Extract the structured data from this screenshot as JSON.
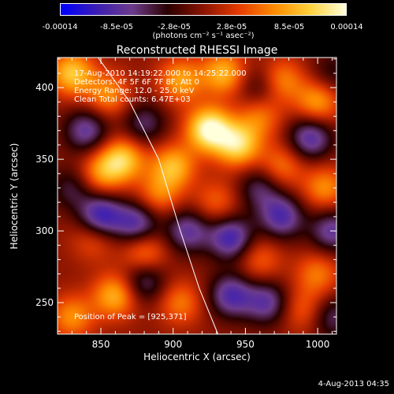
{
  "colorbar": {
    "ticks": [
      "-0.00014",
      "-8.5e-05",
      "-2.8e-05",
      "2.8e-05",
      "8.5e-05",
      "0.00014"
    ],
    "unit": "(photons cm⁻² s⁻¹ asec⁻²)",
    "colors": [
      "#0000ff",
      "#3c1eb4",
      "#6e3c8c",
      "#2a0000",
      "#8c1400",
      "#e63c00",
      "#ff8c00",
      "#ffd23c",
      "#ffffdc"
    ]
  },
  "chart_data": {
    "type": "heatmap",
    "title": "Reconstructed RHESSI Image",
    "xlabel": "Heliocentric X (arcsec)",
    "ylabel": "Heliocentric Y (arcsec)",
    "xlim": [
      820,
      1013
    ],
    "ylim": [
      228,
      421
    ],
    "xticks": [
      850,
      900,
      950,
      1000
    ],
    "yticks": [
      250,
      300,
      350,
      400
    ],
    "value_range": [
      -0.00014,
      0.00014
    ],
    "annotations": [
      "17-Aug-2010 14:19:22.000 to 14:25:22.000",
      "Detectors: 4F 5F 6F 7F 8F, Att 0",
      "Energy Range: 12.0 - 25.0 keV",
      "Clean     Total counts: 6.47E+03"
    ],
    "peak_label": "Position of Peak = [925,371]",
    "peak": [
      925,
      371
    ],
    "limb": [
      [
        848,
        421
      ],
      [
        870,
        390
      ],
      [
        890,
        350
      ],
      [
        905,
        300
      ],
      [
        918,
        260
      ],
      [
        931,
        228
      ]
    ],
    "blobs": [
      {
        "x": 830,
        "y": 410,
        "v": 0.0001
      },
      {
        "x": 855,
        "y": 395,
        "v": 7e-05
      },
      {
        "x": 905,
        "y": 405,
        "v": 8e-05
      },
      {
        "x": 935,
        "y": 410,
        "v": 9e-05
      },
      {
        "x": 960,
        "y": 380,
        "v": 6e-05
      },
      {
        "x": 975,
        "y": 405,
        "v": 7e-05
      },
      {
        "x": 1000,
        "y": 390,
        "v": 8e-05
      },
      {
        "x": 925,
        "y": 371,
        "v": 0.00014
      },
      {
        "x": 945,
        "y": 360,
        "v": 0.00011
      },
      {
        "x": 865,
        "y": 350,
        "v": 0.0001
      },
      {
        "x": 850,
        "y": 340,
        "v": 7e-05
      },
      {
        "x": 900,
        "y": 345,
        "v": 9e-05
      },
      {
        "x": 975,
        "y": 345,
        "v": 6e-05
      },
      {
        "x": 890,
        "y": 325,
        "v": 6e-05
      },
      {
        "x": 930,
        "y": 320,
        "v": 5e-05
      },
      {
        "x": 1005,
        "y": 330,
        "v": 7e-05
      },
      {
        "x": 845,
        "y": 295,
        "v": 5e-05
      },
      {
        "x": 880,
        "y": 285,
        "v": 7e-05
      },
      {
        "x": 960,
        "y": 280,
        "v": 5e-05
      },
      {
        "x": 1000,
        "y": 270,
        "v": 6e-05
      },
      {
        "x": 860,
        "y": 255,
        "v": 9e-05
      },
      {
        "x": 830,
        "y": 240,
        "v": 7e-05
      },
      {
        "x": 905,
        "y": 250,
        "v": 6e-05
      },
      {
        "x": 990,
        "y": 245,
        "v": 5e-05
      },
      {
        "x": 840,
        "y": 370,
        "v": -8e-05
      },
      {
        "x": 880,
        "y": 375,
        "v": -6e-05
      },
      {
        "x": 995,
        "y": 365,
        "v": -9e-05
      },
      {
        "x": 960,
        "y": 400,
        "v": -5e-05
      },
      {
        "x": 850,
        "y": 310,
        "v": -0.00011
      },
      {
        "x": 875,
        "y": 305,
        "v": -9e-05
      },
      {
        "x": 910,
        "y": 300,
        "v": -8e-05
      },
      {
        "x": 940,
        "y": 295,
        "v": -0.0001
      },
      {
        "x": 975,
        "y": 310,
        "v": -9e-05
      },
      {
        "x": 1010,
        "y": 300,
        "v": -8e-05
      },
      {
        "x": 960,
        "y": 330,
        "v": -6e-05
      },
      {
        "x": 880,
        "y": 265,
        "v": -7e-05
      },
      {
        "x": 940,
        "y": 255,
        "v": -9e-05
      },
      {
        "x": 965,
        "y": 250,
        "v": -8e-05
      },
      {
        "x": 1010,
        "y": 240,
        "v": -6e-05
      },
      {
        "x": 830,
        "y": 330,
        "v": -5e-05
      },
      {
        "x": 1010,
        "y": 410,
        "v": -4e-05
      }
    ]
  },
  "footer": "4-Aug-2013 04:35"
}
